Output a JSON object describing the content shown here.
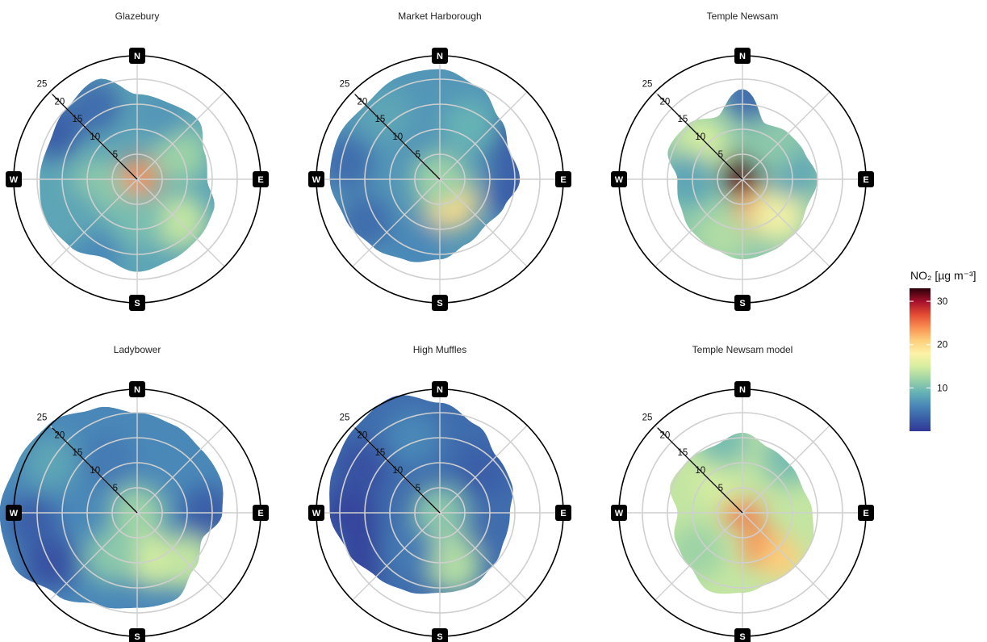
{
  "chart_data": [
    {
      "type": "polar",
      "title": "Glazebury",
      "rmax": 25,
      "radial_ticks": [
        5,
        10,
        15,
        20,
        25
      ],
      "directions": [
        "N",
        "E",
        "S",
        "W"
      ],
      "shape": [
        17,
        16.5,
        17,
        14.5,
        14,
        16.5,
        17,
        17.5,
        18.5,
        17,
        19,
        20,
        19.5,
        19,
        20,
        21.5
      ],
      "hotspots": [
        {
          "a": 0,
          "r": 0,
          "v": 24
        },
        {
          "a": 135,
          "r": 12,
          "v": 14
        },
        {
          "a": 60,
          "r": 10,
          "v": 12
        },
        {
          "a": 260,
          "r": 8,
          "v": 11
        },
        {
          "a": 180,
          "r": 8,
          "v": 10
        },
        {
          "a": 300,
          "r": 19,
          "v": 3
        },
        {
          "a": 330,
          "r": 17,
          "v": 4
        },
        {
          "a": 210,
          "r": 17,
          "v": 6
        },
        {
          "a": 20,
          "r": 14,
          "v": 7
        },
        {
          "a": 240,
          "r": 15,
          "v": 8
        }
      ],
      "base": 8
    },
    {
      "type": "polar",
      "title": "Market Harborough",
      "rmax": 25,
      "radial_ticks": [
        5,
        10,
        15,
        20,
        25
      ],
      "directions": [
        "N",
        "E",
        "S",
        "W"
      ],
      "shape": [
        22,
        20,
        17,
        15,
        16,
        14,
        13,
        14,
        16,
        17.5,
        19,
        20.5,
        22,
        22,
        21,
        22
      ],
      "hotspots": [
        {
          "a": 155,
          "r": 5,
          "v": 20
        },
        {
          "a": 0,
          "r": 0,
          "v": 12
        },
        {
          "a": 60,
          "r": 15,
          "v": 3
        },
        {
          "a": 100,
          "r": 15,
          "v": 3
        },
        {
          "a": 240,
          "r": 17,
          "v": 4
        },
        {
          "a": 280,
          "r": 19,
          "v": 4
        },
        {
          "a": 200,
          "r": 15,
          "v": 6
        },
        {
          "a": 320,
          "r": 17,
          "v": 8
        },
        {
          "a": 0,
          "r": 18,
          "v": 7
        },
        {
          "a": 30,
          "r": 12,
          "v": 9
        }
      ],
      "base": 7
    },
    {
      "type": "polar",
      "title": "Temple Newsam",
      "rmax": 25,
      "radial_ticks": [
        5,
        10,
        15,
        20,
        25
      ],
      "directions": [
        "N",
        "E",
        "S",
        "W"
      ],
      "shape": [
        18,
        12,
        13,
        13.5,
        15,
        14,
        15,
        15.5,
        16,
        15,
        14.5,
        13.5,
        13,
        16,
        15.5,
        13.5
      ],
      "hotspots": [
        {
          "a": 0,
          "r": 1,
          "v": 32
        },
        {
          "a": 160,
          "r": 7,
          "v": 24
        },
        {
          "a": 135,
          "r": 10,
          "v": 17
        },
        {
          "a": 310,
          "r": 11,
          "v": 15
        },
        {
          "a": 200,
          "r": 12,
          "v": 13
        },
        {
          "a": 5,
          "r": 17,
          "v": 4
        },
        {
          "a": 80,
          "r": 10,
          "v": 8
        },
        {
          "a": 270,
          "r": 11,
          "v": 8
        },
        {
          "a": 40,
          "r": 9,
          "v": 11
        }
      ],
      "base": 11
    },
    {
      "type": "polar",
      "title": "Ladybower",
      "rmax": 25,
      "radial_ticks": [
        5,
        10,
        15,
        20,
        25
      ],
      "directions": [
        "N",
        "E",
        "S",
        "W"
      ],
      "shape": [
        20,
        19,
        18,
        18,
        17,
        14,
        16,
        19,
        19,
        20,
        23,
        27,
        27.5,
        26,
        25,
        22.5
      ],
      "hotspots": [
        {
          "a": 160,
          "r": 10,
          "v": 15
        },
        {
          "a": 135,
          "r": 14,
          "v": 14
        },
        {
          "a": 0,
          "r": 0,
          "v": 12
        },
        {
          "a": 210,
          "r": 10,
          "v": 11
        },
        {
          "a": 240,
          "r": 20,
          "v": 2
        },
        {
          "a": 265,
          "r": 21,
          "v": 3
        },
        {
          "a": 90,
          "r": 14,
          "v": 3
        },
        {
          "a": 330,
          "r": 12,
          "v": 5
        },
        {
          "a": 30,
          "r": 15,
          "v": 6
        },
        {
          "a": 300,
          "r": 20,
          "v": 8
        }
      ],
      "base": 6
    },
    {
      "type": "polar",
      "title": "High Muffles",
      "rmax": 25,
      "radial_ticks": [
        5,
        10,
        15,
        20,
        25
      ],
      "directions": [
        "N",
        "E",
        "S",
        "W"
      ],
      "shape": [
        22,
        19,
        16,
        15.5,
        14,
        14,
        15,
        16,
        16,
        17,
        18,
        20,
        22,
        23,
        24,
        25
      ],
      "hotspots": [
        {
          "a": 180,
          "r": 7,
          "v": 14
        },
        {
          "a": 165,
          "r": 11,
          "v": 13
        },
        {
          "a": 0,
          "r": 0,
          "v": 11
        },
        {
          "a": 270,
          "r": 18,
          "v": 1
        },
        {
          "a": 240,
          "r": 17,
          "v": 1
        },
        {
          "a": 300,
          "r": 18,
          "v": 2
        },
        {
          "a": 45,
          "r": 12,
          "v": 3
        },
        {
          "a": 100,
          "r": 12,
          "v": 4
        },
        {
          "a": 340,
          "r": 16,
          "v": 6
        },
        {
          "a": 220,
          "r": 10,
          "v": 5
        }
      ],
      "base": 4
    },
    {
      "type": "polar",
      "title": "Temple Newsam model",
      "rmax": 25,
      "radial_ticks": [
        5,
        10,
        15,
        20,
        25
      ],
      "directions": [
        "N",
        "E",
        "S",
        "W"
      ],
      "shape": [
        16,
        14,
        13.5,
        13,
        14,
        15,
        15,
        15,
        16,
        17,
        15,
        14.5,
        13,
        15.5,
        15,
        14.5
      ],
      "hotspots": [
        {
          "a": 0,
          "r": 1,
          "v": 25
        },
        {
          "a": 150,
          "r": 8,
          "v": 24
        },
        {
          "a": 140,
          "r": 12,
          "v": 21
        },
        {
          "a": 330,
          "r": 8,
          "v": 15
        },
        {
          "a": 20,
          "r": 8,
          "v": 14
        },
        {
          "a": 40,
          "r": 14,
          "v": 10
        },
        {
          "a": 345,
          "r": 15,
          "v": 10
        },
        {
          "a": 230,
          "r": 12,
          "v": 12
        }
      ],
      "base": 14
    }
  ],
  "legend": {
    "title": "NO₂ [µg m⁻³]",
    "min": 0,
    "max": 33,
    "ticks": [
      "10",
      "20",
      "30"
    ],
    "tick_values": [
      10,
      20,
      30
    ],
    "colors": [
      "#313695",
      "#3a5fa8",
      "#4a88b8",
      "#66b3b5",
      "#9dd3a6",
      "#d6eea0",
      "#fdf1a6",
      "#fdce7c",
      "#f98e52",
      "#e34a33",
      "#a50f2b",
      "#2a0008"
    ]
  }
}
